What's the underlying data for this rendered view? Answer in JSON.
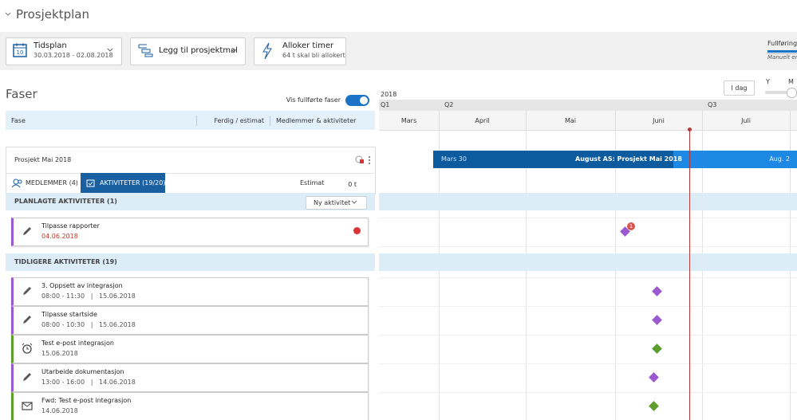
{
  "header": {
    "title": "Prosjektplan"
  },
  "toolbar": {
    "schedule": {
      "label": "Tidsplan",
      "range": "30.03.2018 - 02.08.2018"
    },
    "template": {
      "label": "Legg til prosjektmal"
    },
    "allocate": {
      "label": "Alloker timer",
      "sub": "64 t skal bli allokert"
    },
    "progress": {
      "label": "Fullførings",
      "note": "Manuelt end"
    }
  },
  "phases": {
    "title": "Faser",
    "toggle_label": "Vis fullførte faser",
    "toggle_on": true,
    "columns": [
      "Fase",
      "Ferdig / estimat",
      "Medlemmer & aktiviteter"
    ]
  },
  "timeline": {
    "year": "2018",
    "quarters": [
      "Q1",
      "Q2",
      "Q3"
    ],
    "months": [
      "Mars",
      "April",
      "Mai",
      "Juni",
      "Juli"
    ],
    "today_button": "I dag",
    "zoom": [
      "Y",
      "M"
    ]
  },
  "project": {
    "name": "Prosjekt Mai 2018",
    "tabs": [
      "MEDLEMMER (4)",
      "AKTIVITETER (19/20)"
    ],
    "estimate_label": "Estimat",
    "estimate": "0 t",
    "bar": {
      "start": "Mars 30",
      "title": "August AS: Prosjekt Mai 2018",
      "end": "Aug. 2"
    }
  },
  "planned": {
    "title": "PLANLAGTE AKTIVITETER (1)",
    "button": "Ny aktivitet",
    "activities": [
      {
        "title": "Tilpasse rapporter",
        "details": "04.06.2018",
        "badge": "1"
      }
    ]
  },
  "previous": {
    "title": "TIDLIGERE AKTIVITETER (19)",
    "activities": [
      {
        "title": "3. Oppsett av integrasjon",
        "details": "08:00 - 11:30   |   15.06.2018"
      },
      {
        "title": "Tilpasse startside",
        "details": "08:00 - 10:30   |   15.06.2018"
      },
      {
        "title": "Test e-post integrasjon",
        "details": "15.06.2018"
      },
      {
        "title": "Utarbeide dokumentasjon",
        "details": "13:00 - 16:00   |   14.06.2018"
      },
      {
        "title": "Fwd: Test e-post integrasjon",
        "details": "14.06.2018"
      }
    ]
  }
}
